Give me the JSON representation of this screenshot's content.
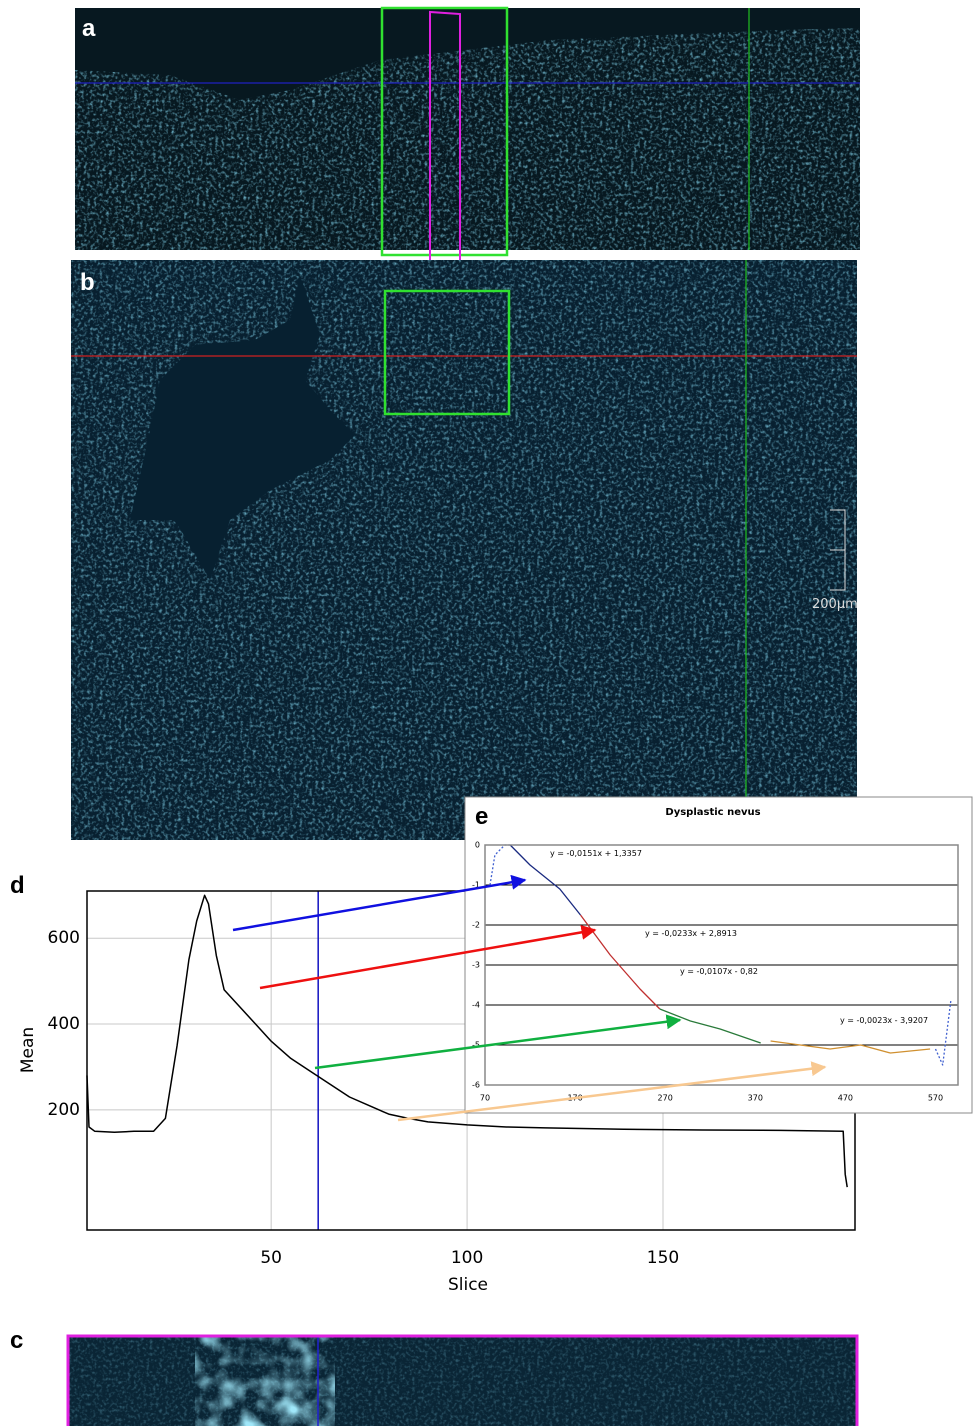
{
  "panels": {
    "a": "a",
    "b": "b",
    "c": "c",
    "d": "d",
    "e": "e"
  },
  "scale_bar": "200µm",
  "chart_data": [
    {
      "type": "line",
      "xlabel": "Slice",
      "ylabel": "Mean",
      "xlim": [
        3,
        199
      ],
      "ylim": [
        -80,
        710
      ],
      "xticks": [
        50,
        100,
        150
      ],
      "yticks": [
        200,
        400,
        600
      ],
      "grid": "both",
      "cursor_x": 62,
      "cursor_color": "#1010c0",
      "series": [
        {
          "color": "#000000",
          "style": "solid",
          "x": [
            3,
            3.5,
            5,
            10,
            15,
            20,
            23,
            26,
            29,
            31,
            33,
            34,
            36,
            38,
            42,
            46,
            50,
            55,
            60,
            65,
            70,
            75,
            80,
            85,
            90,
            100,
            110,
            120,
            140,
            160,
            180,
            196,
            196.5,
            197
          ],
          "values": [
            280,
            160,
            150,
            148,
            150,
            150,
            180,
            350,
            550,
            640,
            700,
            680,
            560,
            480,
            440,
            400,
            360,
            320,
            290,
            260,
            230,
            210,
            190,
            180,
            172,
            165,
            160,
            158,
            155,
            153,
            152,
            150,
            50,
            20
          ]
        }
      ]
    },
    {
      "type": "line",
      "title": "Dysplastic nevus",
      "xlim": [
        70,
        595
      ],
      "ylim": [
        -6,
        0
      ],
      "xticks": [
        70,
        170,
        270,
        370,
        470,
        570
      ],
      "yticks": [
        0,
        -1,
        -2,
        -3,
        -4,
        -5,
        -6
      ],
      "grid": "y",
      "annotations": [
        "y = -0,0151x + 1,3357",
        "y = -0,0233x + 2,8913",
        "y = -0,0107x - 0,82",
        "y = -0,0023x - 3,9207"
      ],
      "series": [
        {
          "color": "#4060d0",
          "style": "dotted",
          "x": [
            75.6,
            81,
            92,
            98
          ],
          "values": [
            -1.0,
            -0.25,
            0,
            0
          ]
        },
        {
          "color": "#1a2a80",
          "style": "solid",
          "x": [
            98,
            120,
            153,
            176
          ],
          "values": [
            0,
            -0.5,
            -1.1,
            -1.75
          ]
        },
        {
          "color": "#c03030",
          "style": "solid",
          "x": [
            176,
            209,
            242,
            264
          ],
          "values": [
            -1.75,
            -2.75,
            -3.6,
            -4.1
          ]
        },
        {
          "color": "#2a7a3a",
          "style": "solid",
          "x": [
            264,
            298,
            331,
            376
          ],
          "values": [
            -4.1,
            -4.4,
            -4.6,
            -4.95
          ]
        },
        {
          "color": "#d09030",
          "style": "solid",
          "x": [
            387,
            420,
            453,
            487,
            520,
            564
          ],
          "values": [
            -4.9,
            -5.0,
            -5.1,
            -5.0,
            -5.2,
            -5.1
          ]
        },
        {
          "color": "#4060d0",
          "style": "dotted",
          "x": [
            570,
            578,
            587
          ],
          "values": [
            -5.1,
            -5.5,
            -3.9
          ]
        }
      ]
    }
  ]
}
